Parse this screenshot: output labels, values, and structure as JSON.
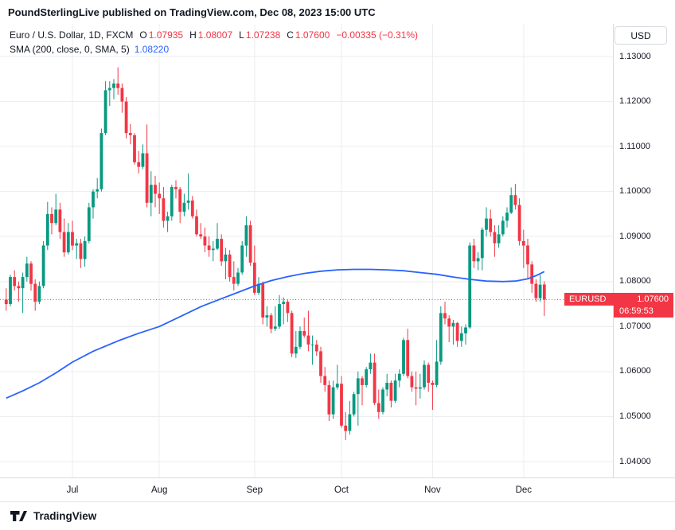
{
  "banner": {
    "text": "PoundSterlingLive published on TradingView.com, Dec 08, 2023 15:00 UTC"
  },
  "legend": {
    "symbol_title": "Euro / U.S. Dollar, 1D, FXCM",
    "ohlc": [
      {
        "label": "O",
        "value": "1.07935"
      },
      {
        "label": "H",
        "value": "1.08007"
      },
      {
        "label": "L",
        "value": "1.07238"
      },
      {
        "label": "C",
        "value": "1.07600"
      }
    ],
    "change": "−0.00335 (−0.31%)",
    "sma_label": "SMA (200, close, 0, SMA, 5)",
    "sma_value": "1.08220"
  },
  "axes": {
    "currency_button": "USD",
    "price_ticks": [
      "1.13000",
      "1.12000",
      "1.11000",
      "1.10000",
      "1.09000",
      "1.08000",
      "1.07000",
      "1.06000",
      "1.05000",
      "1.04000"
    ],
    "time_ticks": [
      {
        "label": "Jul",
        "i": 16
      },
      {
        "label": "Aug",
        "i": 37
      },
      {
        "label": "Sep",
        "i": 60
      },
      {
        "label": "Oct",
        "i": 81
      },
      {
        "label": "Nov",
        "i": 103
      },
      {
        "label": "Dec",
        "i": 125
      }
    ]
  },
  "price_tag": {
    "symbol": "EURUSD",
    "price": "1.07600",
    "countdown": "06:59:53"
  },
  "footer": {
    "logo_text": "TradingView"
  },
  "colors": {
    "up": "#089981",
    "down": "#F23645",
    "sma": "#2962FF",
    "accent_red": "#F23645",
    "grid": "#EBEDF1"
  },
  "chart_data": {
    "type": "candlestick",
    "title": "Euro / U.S. Dollar, 1D, FXCM",
    "symbol": "EURUSD",
    "timeframe": "1D",
    "exchange": "FXCM",
    "current": {
      "open": 1.07935,
      "high": 1.08007,
      "low": 1.07238,
      "close": 1.076,
      "change": -0.00335,
      "change_pct": -0.31
    },
    "sma_200_value": 1.0822,
    "price_line": 1.076,
    "y_axis": {
      "min": 1.04,
      "max": 1.13,
      "tick_step": 0.01
    },
    "x_axis_months": [
      "Jul",
      "Aug",
      "Sep",
      "Oct",
      "Nov",
      "Dec"
    ],
    "candles_ohlc": [
      [
        1.076,
        1.0785,
        1.0735,
        1.075
      ],
      [
        1.075,
        1.0815,
        1.0745,
        1.081
      ],
      [
        1.081,
        1.0825,
        1.078,
        1.079
      ],
      [
        1.079,
        1.08,
        1.0755,
        1.0785
      ],
      [
        1.0785,
        1.082,
        1.073,
        1.081
      ],
      [
        1.081,
        1.0855,
        1.08,
        1.084
      ],
      [
        1.084,
        1.0845,
        1.078,
        1.0795
      ],
      [
        1.0795,
        1.0805,
        1.0735,
        1.0755
      ],
      [
        1.0755,
        1.08,
        1.075,
        1.079
      ],
      [
        1.079,
        1.089,
        1.0785,
        1.088
      ],
      [
        1.088,
        1.0977,
        1.087,
        1.095
      ],
      [
        1.095,
        1.0965,
        1.0905,
        1.093
      ],
      [
        1.093,
        1.0995,
        1.0925,
        1.096
      ],
      [
        1.096,
        1.0975,
        1.0895,
        1.091
      ],
      [
        1.091,
        1.094,
        1.0855,
        1.0865
      ],
      [
        1.0865,
        1.093,
        1.086,
        1.091
      ],
      [
        1.091,
        1.0935,
        1.087,
        1.088
      ],
      [
        1.088,
        1.0895,
        1.085,
        1.0885
      ],
      [
        1.0885,
        1.0895,
        1.083,
        1.085
      ],
      [
        1.085,
        1.09,
        1.0833,
        1.089
      ],
      [
        1.089,
        1.0975,
        1.0885,
        1.0965
      ],
      [
        1.0965,
        1.1005,
        1.094,
        1.1
      ],
      [
        1.1,
        1.103,
        1.0985,
        1.1005
      ],
      [
        1.1005,
        1.114,
        1.1,
        1.113
      ],
      [
        1.113,
        1.1245,
        1.1125,
        1.1225
      ],
      [
        1.1225,
        1.1245,
        1.119,
        1.123
      ],
      [
        1.123,
        1.125,
        1.1205,
        1.124
      ],
      [
        1.124,
        1.1276,
        1.1215,
        1.123
      ],
      [
        1.123,
        1.124,
        1.1175,
        1.12
      ],
      [
        1.12,
        1.121,
        1.1118,
        1.113
      ],
      [
        1.113,
        1.115,
        1.1105,
        1.1125
      ],
      [
        1.1125,
        1.113,
        1.106,
        1.1065
      ],
      [
        1.1065,
        1.109,
        1.104,
        1.1055
      ],
      [
        1.1055,
        1.1105,
        1.105,
        1.1085
      ],
      [
        1.1085,
        1.1149,
        1.0965,
        1.0975
      ],
      [
        1.0975,
        1.1045,
        1.0945,
        1.1015
      ],
      [
        1.1015,
        1.1035,
        1.0965,
        1.0995
      ],
      [
        1.0995,
        1.102,
        1.095,
        1.0985
      ],
      [
        1.0985,
        1.101,
        1.092,
        1.0935
      ],
      [
        1.0935,
        1.0955,
        1.091,
        1.0945
      ],
      [
        1.0945,
        1.1015,
        1.0935,
        1.101
      ],
      [
        1.101,
        1.1025,
        1.0985,
        1.1005
      ],
      [
        1.1005,
        1.101,
        1.093,
        1.0955
      ],
      [
        1.0955,
        1.0995,
        1.0945,
        1.0975
      ],
      [
        1.0975,
        1.104,
        1.096,
        1.098
      ],
      [
        1.098,
        1.099,
        1.094,
        1.0945
      ],
      [
        1.0945,
        1.096,
        1.09,
        1.0905
      ],
      [
        1.0905,
        1.093,
        1.0895,
        1.09
      ],
      [
        1.09,
        1.092,
        1.0865,
        1.088
      ],
      [
        1.088,
        1.09,
        1.0855,
        1.087
      ],
      [
        1.087,
        1.089,
        1.0845,
        1.0873
      ],
      [
        1.0873,
        1.093,
        1.087,
        1.0895
      ],
      [
        1.0895,
        1.0905,
        1.0835,
        1.0845
      ],
      [
        1.0845,
        1.0875,
        1.0805,
        1.086
      ],
      [
        1.086,
        1.087,
        1.08,
        1.081
      ],
      [
        1.081,
        1.0845,
        1.078,
        1.0795
      ],
      [
        1.0795,
        1.083,
        1.079,
        1.082
      ],
      [
        1.082,
        1.089,
        1.0815,
        1.088
      ],
      [
        1.088,
        1.0945,
        1.0855,
        1.0925
      ],
      [
        1.0925,
        1.0935,
        1.0835,
        1.0842
      ],
      [
        1.0842,
        1.088,
        1.077,
        1.0775
      ],
      [
        1.0775,
        1.081,
        1.077,
        1.0795
      ],
      [
        1.0795,
        1.08,
        1.0705,
        1.072
      ],
      [
        1.072,
        1.0745,
        1.07,
        1.0725
      ],
      [
        1.0725,
        1.073,
        1.0685,
        1.0695
      ],
      [
        1.0695,
        1.0745,
        1.069,
        1.07
      ],
      [
        1.07,
        1.077,
        1.0695,
        1.075
      ],
      [
        1.075,
        1.0765,
        1.0705,
        1.0755
      ],
      [
        1.0755,
        1.076,
        1.071,
        1.073
      ],
      [
        1.073,
        1.0735,
        1.0632,
        1.064
      ],
      [
        1.064,
        1.069,
        1.063,
        1.0655
      ],
      [
        1.0655,
        1.07,
        1.065,
        1.069
      ],
      [
        1.069,
        1.072,
        1.0675,
        1.068
      ],
      [
        1.068,
        1.0735,
        1.0645,
        1.066
      ],
      [
        1.066,
        1.068,
        1.0615,
        1.066
      ],
      [
        1.066,
        1.067,
        1.0635,
        1.0645
      ],
      [
        1.0645,
        1.0655,
        1.0575,
        1.059
      ],
      [
        1.059,
        1.061,
        1.0555,
        1.057
      ],
      [
        1.057,
        1.058,
        1.049,
        1.0505
      ],
      [
        1.0505,
        1.058,
        1.0495,
        1.0565
      ],
      [
        1.0565,
        1.0615,
        1.056,
        1.0573
      ],
      [
        1.0573,
        1.059,
        1.0475,
        1.048
      ],
      [
        1.048,
        1.051,
        1.0448,
        1.0468
      ],
      [
        1.0468,
        1.0535,
        1.046,
        1.0505
      ],
      [
        1.0505,
        1.0555,
        1.05,
        1.055
      ],
      [
        1.055,
        1.06,
        1.048,
        1.0585
      ],
      [
        1.0585,
        1.059,
        1.0525,
        1.057
      ],
      [
        1.057,
        1.061,
        1.0565,
        1.0605
      ],
      [
        1.0605,
        1.064,
        1.0595,
        1.062
      ],
      [
        1.062,
        1.064,
        1.0525,
        1.053
      ],
      [
        1.053,
        1.056,
        1.0495,
        1.051
      ],
      [
        1.051,
        1.0565,
        1.0505,
        1.056
      ],
      [
        1.056,
        1.0595,
        1.0545,
        1.0575
      ],
      [
        1.0575,
        1.058,
        1.052,
        1.0535
      ],
      [
        1.0535,
        1.0595,
        1.053,
        1.058
      ],
      [
        1.058,
        1.0605,
        1.0565,
        1.0595
      ],
      [
        1.0595,
        1.0675,
        1.059,
        1.067
      ],
      [
        1.067,
        1.0695,
        1.0585,
        1.059
      ],
      [
        1.059,
        1.06,
        1.0555,
        1.0565
      ],
      [
        1.0565,
        1.06,
        1.0525,
        1.0562
      ],
      [
        1.0562,
        1.0595,
        1.054,
        1.0565
      ],
      [
        1.0565,
        1.0625,
        1.056,
        1.0615
      ],
      [
        1.0615,
        1.062,
        1.0555,
        1.0575
      ],
      [
        1.0575,
        1.058,
        1.0515,
        1.057
      ],
      [
        1.057,
        1.067,
        1.0565,
        1.0622
      ],
      [
        1.0622,
        1.0745,
        1.0615,
        1.073
      ],
      [
        1.073,
        1.0755,
        1.0705,
        1.0718
      ],
      [
        1.0718,
        1.0725,
        1.0665,
        1.07
      ],
      [
        1.07,
        1.0715,
        1.066,
        1.0708
      ],
      [
        1.0708,
        1.071,
        1.0655,
        1.0668
      ],
      [
        1.0668,
        1.07,
        1.0655,
        1.0685
      ],
      [
        1.0685,
        1.0705,
        1.066,
        1.0698
      ],
      [
        1.0698,
        1.0887,
        1.0695,
        1.088
      ],
      [
        1.088,
        1.0895,
        1.083,
        1.0845
      ],
      [
        1.0845,
        1.0865,
        1.0825,
        1.0852
      ],
      [
        1.0852,
        1.092,
        1.0825,
        1.0915
      ],
      [
        1.0915,
        1.0965,
        1.09,
        1.094
      ],
      [
        1.094,
        1.096,
        1.09,
        1.091
      ],
      [
        1.091,
        1.0925,
        1.0855,
        1.0885
      ],
      [
        1.0885,
        1.0925,
        1.0875,
        1.0905
      ],
      [
        1.0905,
        1.0945,
        1.09,
        1.0935
      ],
      [
        1.0935,
        1.0965,
        1.092,
        1.0953
      ],
      [
        1.0953,
        1.1009,
        1.095,
        1.0992
      ],
      [
        1.0992,
        1.1017,
        1.096,
        1.097
      ],
      [
        1.097,
        1.0985,
        1.088,
        1.089
      ],
      [
        1.089,
        1.0915,
        1.083,
        1.088
      ],
      [
        1.088,
        1.0895,
        1.0805,
        1.0838
      ],
      [
        1.0838,
        1.0845,
        1.0775,
        1.0795
      ],
      [
        1.0795,
        1.0805,
        1.0755,
        1.0763
      ],
      [
        1.0763,
        1.0815,
        1.0755,
        1.0793
      ],
      [
        1.07935,
        1.08007,
        1.07238,
        1.076
      ]
    ],
    "sma_points": [
      [
        0,
        1.0541
      ],
      [
        4,
        1.0557
      ],
      [
        8,
        1.0575
      ],
      [
        12,
        1.0597
      ],
      [
        16,
        1.0621
      ],
      [
        21,
        1.0645
      ],
      [
        27,
        1.0668
      ],
      [
        32,
        1.0685
      ],
      [
        37,
        1.07
      ],
      [
        42,
        1.0722
      ],
      [
        47,
        1.0744
      ],
      [
        52,
        1.0762
      ],
      [
        56,
        1.0776
      ],
      [
        60,
        1.079
      ],
      [
        64,
        1.0802
      ],
      [
        68,
        1.0811
      ],
      [
        72,
        1.0818
      ],
      [
        76,
        1.0823
      ],
      [
        80,
        1.0826
      ],
      [
        84,
        1.0827
      ],
      [
        88,
        1.0827
      ],
      [
        92,
        1.0826
      ],
      [
        96,
        1.0824
      ],
      [
        100,
        1.082
      ],
      [
        104,
        1.0816
      ],
      [
        108,
        1.081
      ],
      [
        112,
        1.0805
      ],
      [
        116,
        1.0801
      ],
      [
        120,
        1.08
      ],
      [
        123,
        1.0801
      ],
      [
        126,
        1.0806
      ],
      [
        128,
        1.0813
      ],
      [
        130,
        1.0822
      ]
    ]
  }
}
